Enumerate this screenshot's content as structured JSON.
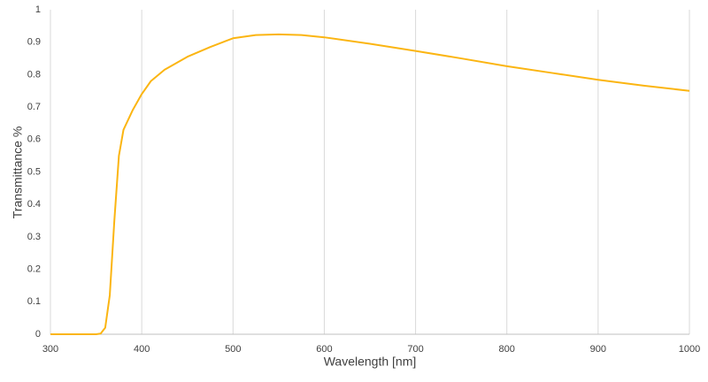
{
  "chart_data": {
    "type": "line",
    "x_label": "Wavelength [nm]",
    "y_label": "Transmittance %",
    "series": [
      {
        "name": "Transmittance",
        "color": "#fbb512",
        "x": [
          300,
          350,
          355,
          360,
          365,
          370,
          375,
          380,
          390,
          400,
          410,
          425,
          450,
          475,
          500,
          525,
          550,
          575,
          600,
          650,
          700,
          750,
          800,
          850,
          900,
          950,
          1000
        ],
        "values": [
          0,
          0,
          0.002,
          0.02,
          0.12,
          0.35,
          0.55,
          0.63,
          0.69,
          0.74,
          0.78,
          0.815,
          0.855,
          0.885,
          0.912,
          0.922,
          0.924,
          0.922,
          0.915,
          0.895,
          0.873,
          0.85,
          0.826,
          0.805,
          0.784,
          0.766,
          0.75
        ]
      }
    ],
    "xlim": [
      300,
      1000
    ],
    "xticks": [
      300,
      400,
      500,
      600,
      700,
      800,
      900,
      1000
    ],
    "ylim": [
      0,
      1
    ],
    "yticks": [
      0,
      0.1,
      0.2,
      0.3,
      0.4,
      0.5,
      0.6,
      0.7,
      0.8,
      0.9,
      1
    ],
    "grid": "x"
  }
}
